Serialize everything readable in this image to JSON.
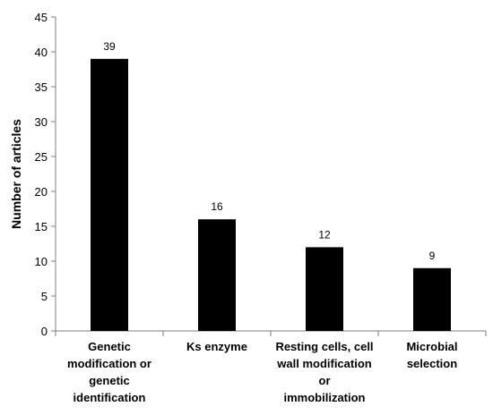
{
  "chart_data": {
    "type": "bar",
    "categories": [
      "Genetic modification or genetic identification",
      "Ks enzyme",
      "Resting cells, cell wall modification or immobilization",
      "Microbial selection"
    ],
    "category_lines": [
      [
        "Genetic",
        "modification or",
        "genetic",
        "identification"
      ],
      [
        "Ks enzyme"
      ],
      [
        "Resting cells, cell",
        "wall modification",
        "or",
        "immobilization"
      ],
      [
        "Microbial",
        "selection"
      ]
    ],
    "values": [
      39,
      16,
      12,
      9
    ],
    "ylabel": "Number of articles",
    "xlabel": "",
    "ylim": [
      0,
      45
    ],
    "yticks": [
      0,
      5,
      10,
      15,
      20,
      25,
      30,
      35,
      40,
      45
    ],
    "bar_color": "#000000",
    "grid": false
  }
}
